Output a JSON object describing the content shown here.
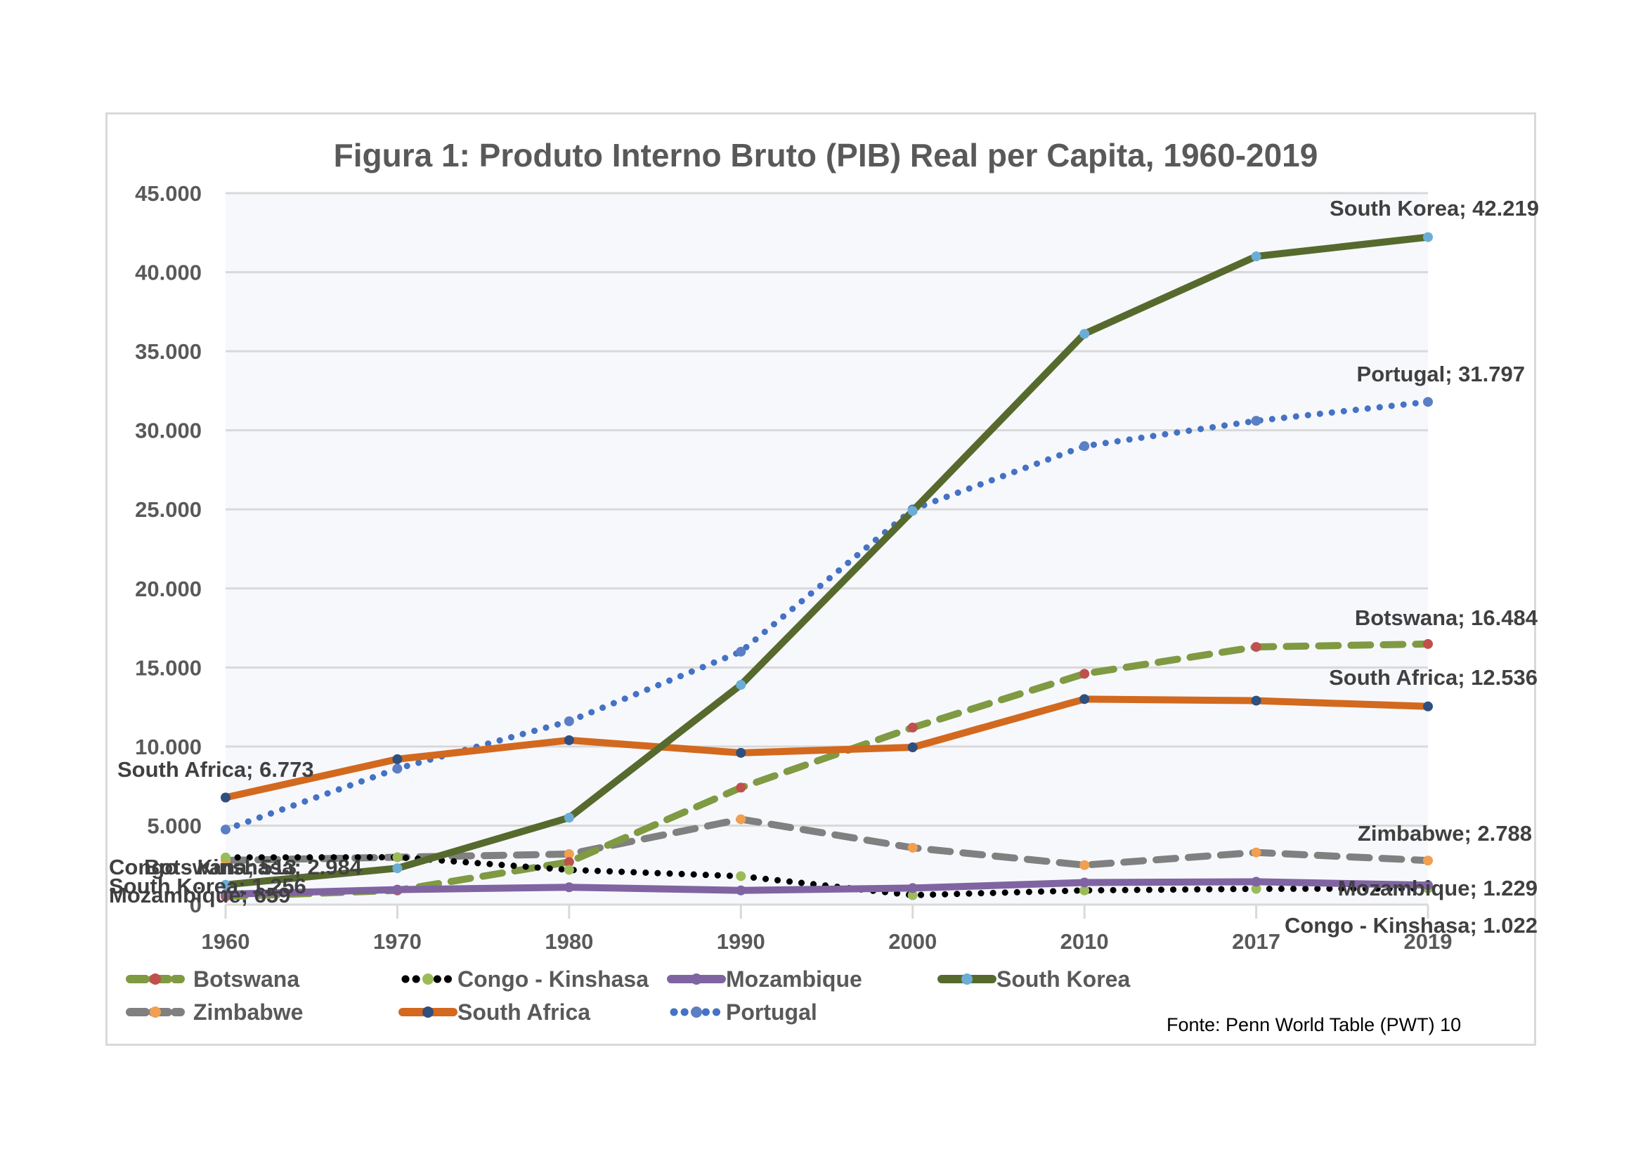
{
  "chart_data": {
    "type": "line",
    "title": "Figura 1: Produto Interno Bruto (PIB) Real per Capita, 1960-2019",
    "xlabel": "",
    "ylabel": "",
    "source_note": "Fonte: Penn World Table (PWT) 10",
    "categories": [
      "1960",
      "1970",
      "1980",
      "1990",
      "2000",
      "2010",
      "2017",
      "2019"
    ],
    "ylim": [
      0,
      45000
    ],
    "yticks": [
      0,
      5000,
      10000,
      15000,
      20000,
      25000,
      30000,
      35000,
      40000,
      45000
    ],
    "ytick_labels": [
      "0",
      "5.000",
      "10.000",
      "15.000",
      "20.000",
      "25.000",
      "30.000",
      "35.000",
      "40.000",
      "45.000"
    ],
    "grid": true,
    "legend_position": "bottom",
    "series": [
      {
        "name": "Botswana",
        "line_color": "#7f9a42",
        "marker_color": "#c0504d",
        "dash": "dash",
        "values": [
          513,
          900,
          2700,
          7400,
          11200,
          14600,
          16300,
          16484
        ],
        "labels": [
          {
            "index": 0,
            "text": "Botswana; 513"
          },
          {
            "index": 7,
            "text": "Botswana; 16.484"
          }
        ]
      },
      {
        "name": "Congo - Kinshasa",
        "line_color": "#000000",
        "marker_color": "#9bbb59",
        "dash": "dot",
        "values": [
          2984,
          3000,
          2200,
          1800,
          600,
          900,
          1000,
          1022
        ],
        "labels": [
          {
            "index": 0,
            "text": "Congo - Kinshasa; 2.984"
          },
          {
            "index": 7,
            "text": "Congo - Kinshasa; 1.022"
          }
        ]
      },
      {
        "name": "Mozambique",
        "line_color": "#8064a2",
        "marker_color": "#8064a2",
        "dash": "solid",
        "values": [
          659,
          950,
          1100,
          900,
          1050,
          1400,
          1450,
          1229
        ],
        "labels": [
          {
            "index": 0,
            "text": "Mozambique; 659"
          },
          {
            "index": 7,
            "text": "Mozambique; 1.229"
          }
        ]
      },
      {
        "name": "South Korea",
        "line_color": "#576a2e",
        "marker_color": "#6aaed6",
        "dash": "solid",
        "values": [
          1256,
          2300,
          5500,
          13900,
          24900,
          36100,
          41000,
          42219
        ],
        "labels": [
          {
            "index": 0,
            "text": "South Korea; 1.256"
          },
          {
            "index": 7,
            "text": "South Korea; 42.219"
          }
        ]
      },
      {
        "name": "Zimbabwe",
        "line_color": "#808080",
        "marker_color": "#f0a050",
        "dash": "dash",
        "values": [
          2800,
          3000,
          3200,
          5400,
          3600,
          2500,
          3300,
          2788
        ],
        "labels": [
          {
            "index": 7,
            "text": "Zimbabwe; 2.788"
          }
        ]
      },
      {
        "name": "South Africa",
        "line_color": "#d2691e",
        "marker_color": "#2f4f7f",
        "dash": "solid",
        "values": [
          6773,
          9200,
          10400,
          9600,
          9950,
          13000,
          12900,
          12536
        ],
        "labels": [
          {
            "index": 0,
            "text": "South Africa; 6.773"
          },
          {
            "index": 7,
            "text": "South Africa; 12.536"
          }
        ]
      },
      {
        "name": "Portugal",
        "line_color": "#4472c4",
        "marker_color": "#5b7fc4",
        "dash": "dot",
        "values": [
          4750,
          8600,
          11600,
          16000,
          25000,
          29000,
          30600,
          31797
        ],
        "labels": [
          {
            "index": 7,
            "text": "Portugal; 31.797"
          }
        ]
      }
    ]
  }
}
